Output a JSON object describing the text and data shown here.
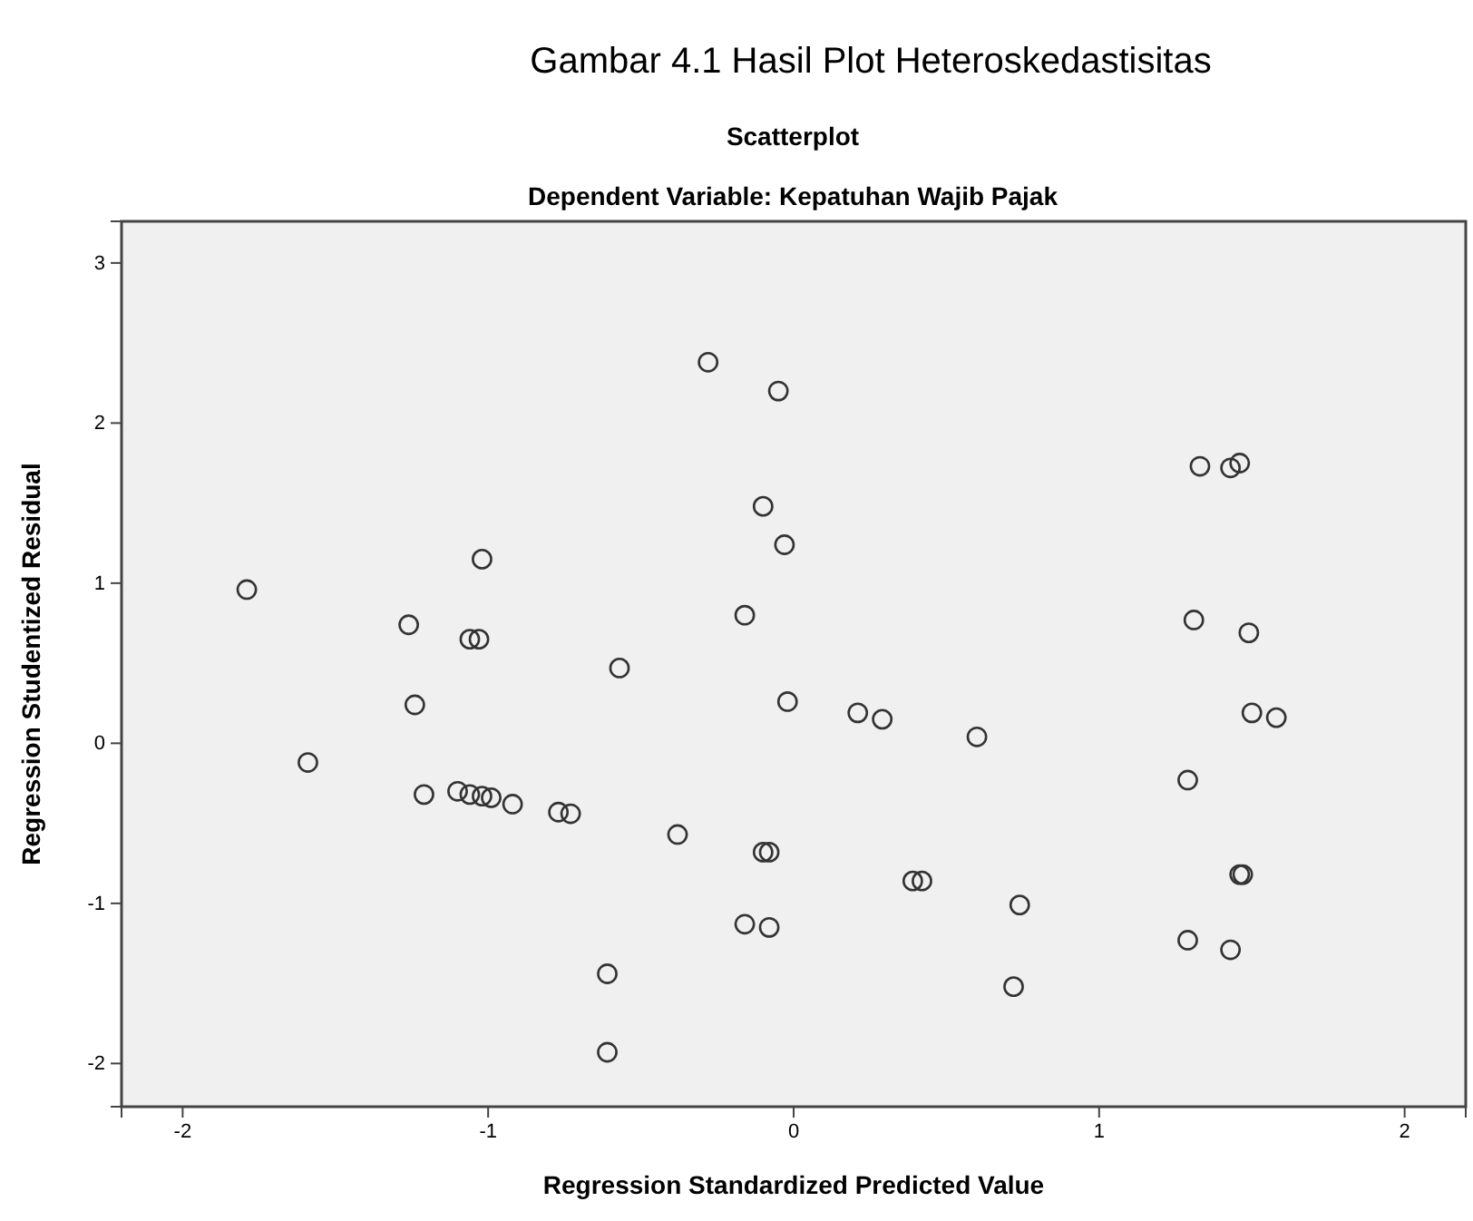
{
  "chart_data": {
    "type": "scatter",
    "title": "Scatterplot",
    "subtitle": "Dependent Variable: Kepatuhan Wajib Pajak",
    "annotations": [
      "Gambar 4.1 Hasil Plot Heteroskedastisitas"
    ],
    "xlabel": "Regression Standardized Predicted Value",
    "ylabel": "Regression Studentized Residual",
    "xlim": [
      -2.2,
      2.2
    ],
    "ylim": [
      -2.27,
      3.26
    ],
    "xticks": [
      -2,
      -1,
      0,
      1,
      2
    ],
    "yticks": [
      -2,
      -1,
      0,
      1,
      2,
      3
    ],
    "grid": false,
    "marker": "circle",
    "series": [
      {
        "color": "#333333",
        "x": [
          -1.79,
          -1.02,
          -1.26,
          -1.06,
          -1.03,
          -1.24,
          -1.59,
          -1.21,
          -1.1,
          -1.06,
          -1.02,
          -0.99,
          -0.92,
          -0.77,
          -0.73,
          -0.28,
          -0.05,
          -0.1,
          -0.03,
          -0.16,
          -0.57,
          -0.02,
          0.21,
          0.29,
          0.6,
          -0.38,
          -0.1,
          -0.08,
          0.39,
          0.42,
          -0.16,
          -0.08,
          -0.61,
          -0.61,
          1.33,
          1.43,
          1.46,
          1.31,
          1.49,
          1.5,
          1.58,
          1.29,
          1.46,
          1.47,
          0.74,
          1.29,
          1.43,
          0.72
        ],
        "values": [
          0.96,
          1.15,
          0.74,
          0.65,
          0.65,
          0.24,
          -0.12,
          -0.32,
          -0.3,
          -0.32,
          -0.33,
          -0.34,
          -0.38,
          -0.43,
          -0.44,
          2.38,
          2.2,
          1.48,
          1.24,
          0.8,
          0.47,
          0.26,
          0.19,
          0.15,
          0.04,
          -0.57,
          -0.68,
          -0.68,
          -0.86,
          -0.86,
          -1.13,
          -1.15,
          -1.44,
          -1.93,
          1.73,
          1.72,
          1.75,
          0.77,
          0.69,
          0.19,
          0.16,
          -0.23,
          -0.82,
          -0.82,
          -1.01,
          -1.23,
          -1.29,
          -1.52
        ]
      }
    ]
  }
}
